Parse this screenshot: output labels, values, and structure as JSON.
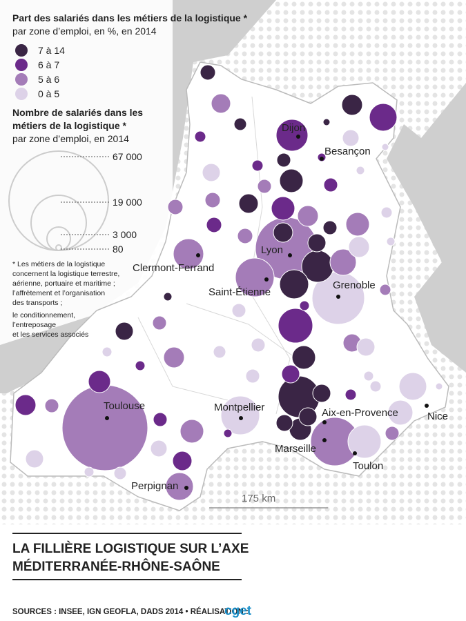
{
  "legend_share": {
    "title": "Part des salariés dans les métiers de la logistique *",
    "subtitle": "par zone d’emploi, en %, en 2014",
    "classes": [
      "7 à 14",
      "6 à 7",
      "5 à 6",
      "0 à 5"
    ]
  },
  "legend_size": {
    "title": [
      "Nombre de salariés dans les",
      "métiers de la logistique *"
    ],
    "subtitle": "par zone d’emploi, en 2014",
    "labels": [
      "67 000",
      "19 000",
      "3 000",
      "80"
    ]
  },
  "footnote": [
    "* Les métiers de la logistique",
    "concernent la logistique terrestre,",
    "aérienne, portuaire et maritime ;",
    "l’affrètement et l’organisation",
    "des transports ;",
    "le conditionnement,",
    "l’entreposage",
    "et les services associés"
  ],
  "cities": [
    "Dijon",
    "Besançon",
    "Lyon",
    "Clermont-Ferrand",
    "Saint-Étienne",
    "Grenoble",
    "Toulouse",
    "Montpellier",
    "Aix-en-Provence",
    "Nice",
    "Marseille",
    "Toulon",
    "Perpignan"
  ],
  "scale": "175 km",
  "title": [
    "LA FILLIÈRE LOGISTIQUE SUR L’AXE",
    "MÉDITERRANÉE-RHÔNE-SAÔNE"
  ],
  "sources": "SOURCES : INSEE, IGN GEOFLA, DADS 2014 • RÉALISATION :",
  "logo": "cget"
}
